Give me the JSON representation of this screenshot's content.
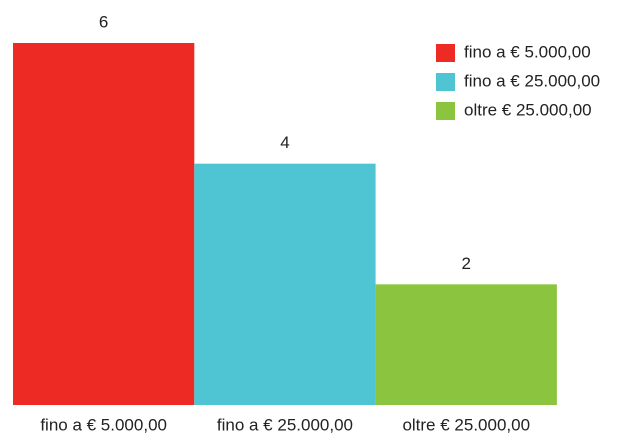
{
  "chart_data": {
    "type": "bar",
    "categories": [
      "fino a € 5.000,00",
      "fino a € 25.000,00",
      "oltre € 25.000,00"
    ],
    "values": [
      6,
      4,
      2
    ],
    "colors": [
      "#ee2a24",
      "#4fc4d3",
      "#8bc540"
    ],
    "ylim": [
      0,
      6
    ],
    "legend": "top-right"
  }
}
